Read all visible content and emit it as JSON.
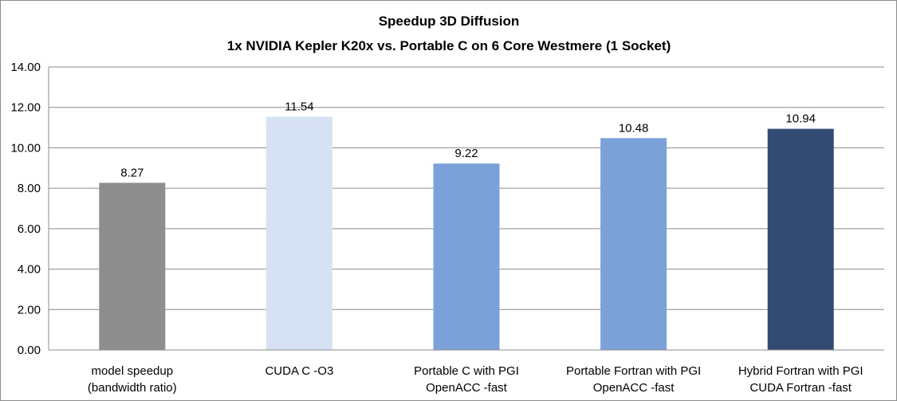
{
  "chart_data": {
    "type": "bar",
    "title": "Speedup 3D Diffusion",
    "subtitle": "1x NVIDIA Kepler K20x vs. Portable C on 6 Core Westmere (1 Socket)",
    "xlabel": "",
    "ylabel": "",
    "ylim": [
      0,
      14
    ],
    "yticks": [
      "0.00",
      "2.00",
      "4.00",
      "6.00",
      "8.00",
      "10.00",
      "12.00",
      "14.00"
    ],
    "grid": true,
    "legend": "none",
    "categories": [
      [
        "model speedup",
        "(bandwidth ratio)"
      ],
      [
        "CUDA C -O3"
      ],
      [
        "Portable C with PGI",
        "OpenACC -fast"
      ],
      [
        "Portable Fortran with PGI",
        "OpenACC -fast"
      ],
      [
        "Hybrid Fortran with PGI",
        "CUDA Fortran -fast"
      ]
    ],
    "values": [
      8.27,
      11.54,
      9.22,
      10.48,
      10.94
    ],
    "value_labels": [
      "8.27",
      "11.54",
      "9.22",
      "10.48",
      "10.94"
    ],
    "colors": [
      "#8e8e8e",
      "#d6e2f4",
      "#7ba1d8",
      "#7ba1d8",
      "#334a72"
    ]
  }
}
